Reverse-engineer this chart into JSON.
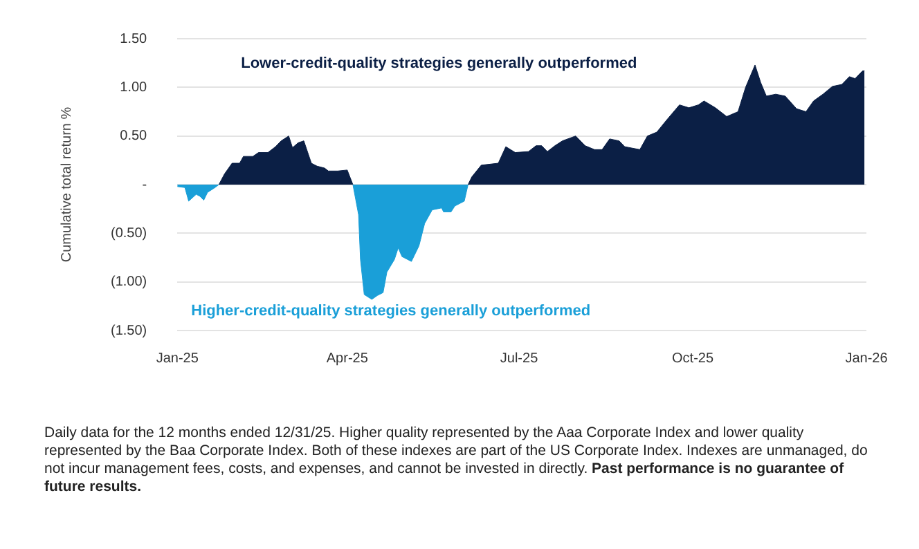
{
  "chart_data": {
    "type": "area",
    "ylabel": "Cumulative total return %",
    "x": [
      "2025-01-01",
      "2025-01-05",
      "2025-01-07",
      "2025-01-11",
      "2025-01-13",
      "2025-01-15",
      "2025-01-17",
      "2025-01-21",
      "2025-01-23",
      "2025-01-26",
      "2025-01-30",
      "2025-02-03",
      "2025-02-05",
      "2025-02-10",
      "2025-02-13",
      "2025-02-18",
      "2025-02-22",
      "2025-02-25",
      "2025-03-01",
      "2025-03-03",
      "2025-03-06",
      "2025-03-09",
      "2025-03-13",
      "2025-03-16",
      "2025-03-20",
      "2025-03-22",
      "2025-03-27",
      "2025-04-01",
      "2025-04-04",
      "2025-04-07",
      "2025-04-08",
      "2025-04-10",
      "2025-04-14",
      "2025-04-17",
      "2025-04-20",
      "2025-04-22",
      "2025-04-26",
      "2025-04-28",
      "2025-04-30",
      "2025-05-05",
      "2025-05-09",
      "2025-05-12",
      "2025-05-16",
      "2025-05-21",
      "2025-05-22",
      "2025-05-26",
      "2025-05-28",
      "2025-06-02",
      "2025-06-04",
      "2025-06-06",
      "2025-06-11",
      "2025-06-20",
      "2025-06-24",
      "2025-06-29",
      "2025-07-06",
      "2025-07-10",
      "2025-07-13",
      "2025-07-16",
      "2025-07-20",
      "2025-07-24",
      "2025-07-31",
      "2025-08-05",
      "2025-08-10",
      "2025-08-14",
      "2025-08-18",
      "2025-08-23",
      "2025-08-26",
      "2025-09-03",
      "2025-09-07",
      "2025-09-12",
      "2025-09-17",
      "2025-09-24",
      "2025-09-29",
      "2025-10-04",
      "2025-10-07",
      "2025-10-13",
      "2025-10-19",
      "2025-10-25",
      "2025-10-29",
      "2025-11-03",
      "2025-11-06",
      "2025-11-09",
      "2025-11-14",
      "2025-11-19",
      "2025-11-25",
      "2025-11-30",
      "2025-12-04",
      "2025-12-09",
      "2025-12-14",
      "2025-12-19",
      "2025-12-23",
      "2025-12-26",
      "2025-12-30",
      "2025-12-31"
    ],
    "series": [
      {
        "color": "#0b1f45",
        "values": [
          null,
          null,
          null,
          null,
          null,
          null,
          null,
          null,
          0,
          0.11,
          0.22,
          0.22,
          0.29,
          0.29,
          0.33,
          0.33,
          0.39,
          0.45,
          0.5,
          0.38,
          0.43,
          0.45,
          0.22,
          0.19,
          0.17,
          0.14,
          0.14,
          0.15,
          0,
          null,
          null,
          null,
          null,
          null,
          null,
          null,
          null,
          null,
          null,
          null,
          null,
          null,
          null,
          null,
          null,
          null,
          null,
          null,
          0,
          0.08,
          0.2,
          0.22,
          0.39,
          0.33,
          0.34,
          0.4,
          0.4,
          0.34,
          0.4,
          0.45,
          0.5,
          0.4,
          0.36,
          0.36,
          0.47,
          0.45,
          0.39,
          0.36,
          0.5,
          0.54,
          0.66,
          0.82,
          0.79,
          0.82,
          0.86,
          0.79,
          0.7,
          0.75,
          1.0,
          1.23,
          1.05,
          0.91,
          0.93,
          0.91,
          0.78,
          0.75,
          0.86,
          0.93,
          1.01,
          1.03,
          1.11,
          1.09,
          1.17,
          1.17
        ]
      },
      {
        "color": "#1a9fd8",
        "values": [
          -0.02,
          -0.03,
          -0.17,
          -0.1,
          -0.12,
          -0.16,
          -0.08,
          -0.03,
          0,
          null,
          null,
          null,
          null,
          null,
          null,
          null,
          null,
          null,
          null,
          null,
          null,
          null,
          null,
          null,
          null,
          null,
          null,
          null,
          0,
          -0.31,
          -0.77,
          -1.13,
          -1.18,
          -1.14,
          -1.11,
          -0.9,
          -0.77,
          -0.65,
          -0.74,
          -0.79,
          -0.63,
          -0.4,
          -0.26,
          -0.24,
          -0.28,
          -0.28,
          -0.22,
          -0.17,
          0,
          null,
          null,
          null,
          null,
          null,
          null,
          null,
          null,
          null,
          null,
          null,
          null,
          null,
          null,
          null,
          null,
          null,
          null,
          null,
          null,
          null,
          null,
          null,
          null,
          null,
          null,
          null,
          null,
          null,
          null,
          null,
          null,
          null,
          null,
          null,
          null,
          null,
          null,
          null,
          null,
          null,
          null,
          null,
          null,
          null
        ]
      }
    ],
    "xlim": [
      "2025-01-01",
      "2026-01-01"
    ],
    "xticks": [
      {
        "value": "2025-01-01",
        "label": "Jan-25"
      },
      {
        "value": "2025-04-01",
        "label": "Apr-25"
      },
      {
        "value": "2025-07-01",
        "label": "Jul-25"
      },
      {
        "value": "2025-10-01",
        "label": "Oct-25"
      },
      {
        "value": "2026-01-01",
        "label": "Jan-26"
      }
    ],
    "ylim": [
      -1.5,
      1.5
    ],
    "yticks": [
      {
        "value": -1.5,
        "label": "(1.50)"
      },
      {
        "value": -1,
        "label": "(1.00)"
      },
      {
        "value": -0.5,
        "label": "(0.50)"
      },
      {
        "value": 0,
        "label": "-"
      },
      {
        "value": 0.5,
        "label": "0.50"
      },
      {
        "value": 1,
        "label": "1.00"
      },
      {
        "value": 1.5,
        "label": "1.50"
      }
    ],
    "grid": "y",
    "annotations": [
      "Lower-credit-quality strategies generally outperformed",
      "Higher-credit-quality strategies generally outperformed",
      "Daily data for the 12 months ended 12/31/25. Higher quality represented by the Aaa Corporate Index and lower quality represented by the Baa Corporate Index. Both of these indexes are part of the US Corporate Index. Indexes are unmanaged, do not incur management fees, costs, and expenses, and cannot be invested in directly.",
      "Past performance is no guarantee of future results."
    ]
  }
}
